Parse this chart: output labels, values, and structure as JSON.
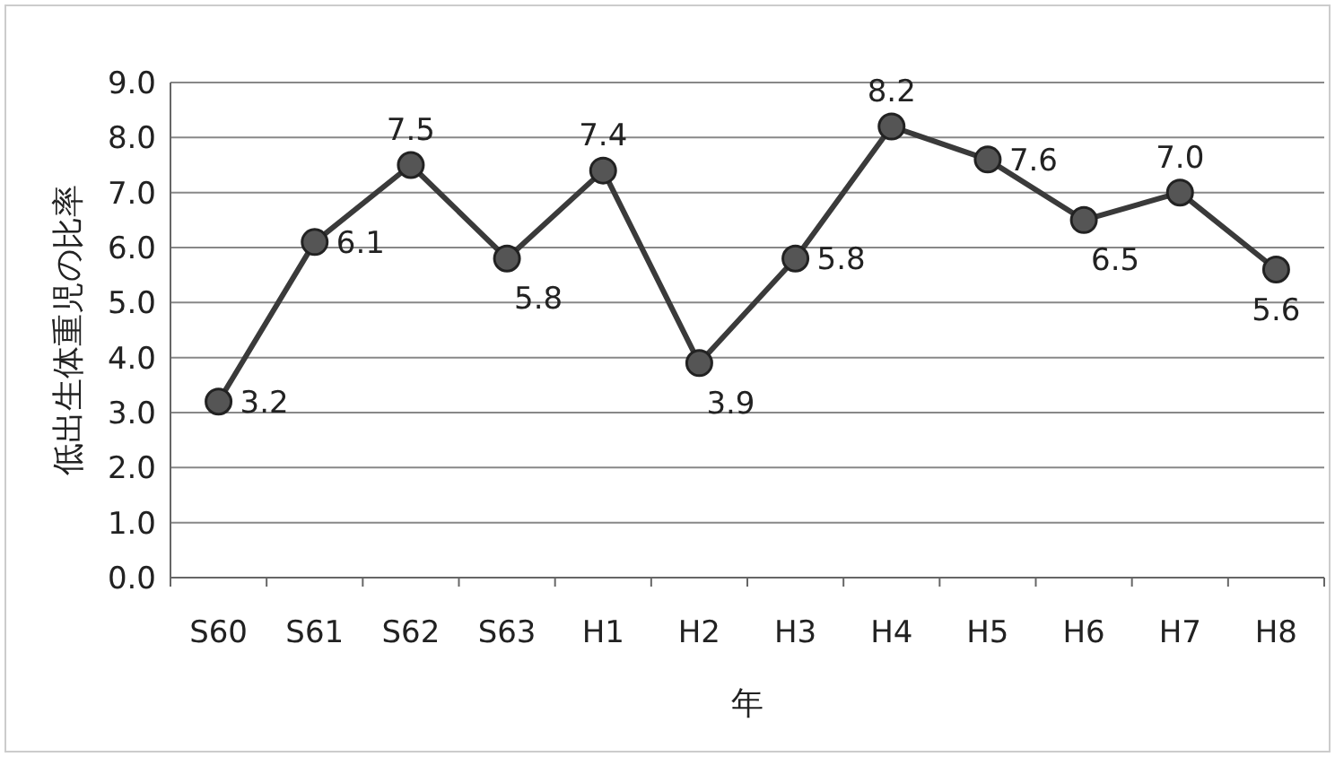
{
  "chart_data": {
    "type": "line",
    "xlabel": "年",
    "ylabel": "低出生体重児の比率",
    "categories": [
      "S60",
      "S61",
      "S62",
      "S63",
      "H1",
      "H2",
      "H3",
      "H4",
      "H5",
      "H6",
      "H7",
      "H8"
    ],
    "series": [
      {
        "color": "#3a3a3a",
        "values": [
          3.2,
          6.1,
          7.5,
          5.8,
          7.4,
          3.9,
          5.8,
          8.2,
          7.6,
          6.5,
          7.0,
          5.6
        ],
        "value_labels": [
          "3.2",
          "6.1",
          "7.5",
          "5.8",
          "7.4",
          "3.9",
          "5.8",
          "8.2",
          "7.6",
          "6.5",
          "7.0",
          "5.6"
        ]
      }
    ],
    "ylim": [
      0,
      9
    ],
    "yticks": [
      {
        "value": 0,
        "label": "0.0"
      },
      {
        "value": 1,
        "label": "1.0"
      },
      {
        "value": 2,
        "label": "2.0"
      },
      {
        "value": 3,
        "label": "3.0"
      },
      {
        "value": 4,
        "label": "4.0"
      },
      {
        "value": 5,
        "label": "5.0"
      },
      {
        "value": 6,
        "label": "6.0"
      },
      {
        "value": 7,
        "label": "7.0"
      },
      {
        "value": 8,
        "label": "8.0"
      },
      {
        "value": 9,
        "label": "9.0"
      }
    ],
    "grid": "y",
    "marker": "circle",
    "line_style": "solid"
  }
}
